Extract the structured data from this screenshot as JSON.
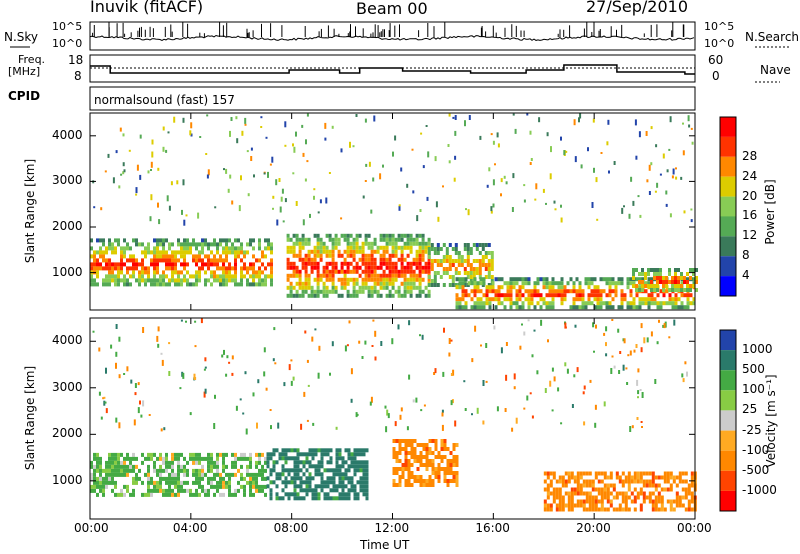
{
  "header": {
    "station": "Inuvik (fitACF)",
    "beam": "Beam 00",
    "date": "27/Sep/2010"
  },
  "strip_panels": {
    "nsky_label": "N.Sky",
    "nsky_ticks": [
      "10^5",
      "10^0"
    ],
    "nsearch_label": "N.Search",
    "nsearch_ticks": [
      "10^5",
      "10^0"
    ],
    "freq_label_1": "Freq.",
    "freq_label_2": "[MHz]",
    "freq_ticks": [
      "18",
      "8"
    ],
    "nave_label": "Nave",
    "nave_ticks": [
      "60",
      "0"
    ],
    "cpid_label": "CPID",
    "cpid_text": "normalsound (fast) 157"
  },
  "colors": {
    "power_scale": [
      "#0000ff",
      "#2244aa",
      "#3a7a5a",
      "#55aa55",
      "#88cc55",
      "#ddcc00",
      "#ff8800",
      "#ff3300",
      "#ff0000"
    ],
    "velocity_scale": [
      "#ff0000",
      "#ff4400",
      "#ff8800",
      "#ffaa22",
      "#cccccc",
      "#88cc44",
      "#44aa44",
      "#2a7a6a",
      "#2244aa"
    ],
    "ground_scatter": "#bbbbbb"
  },
  "chart_data": [
    {
      "type": "heatmap",
      "panel": "power",
      "ylabel": "Slant Range [km]",
      "yticks": [
        "1000",
        "2000",
        "3000",
        "4000"
      ],
      "ylim_km": [
        180,
        4500
      ],
      "xlim_hours_ut": [
        0,
        24
      ],
      "colorbar": {
        "label": "Power [dB]",
        "ticks": [
          "4",
          "8",
          "12",
          "16",
          "20",
          "24",
          "28"
        ],
        "range": [
          0,
          32
        ]
      },
      "scatter_regions": [
        {
          "t_start": 0.0,
          "t_end": 7.2,
          "r_low": 700,
          "r_high": 1750,
          "peak_db": 28
        },
        {
          "t_start": 7.8,
          "t_end": 13.4,
          "r_low": 500,
          "r_high": 1850,
          "peak_db": 30
        },
        {
          "t_start": 13.4,
          "t_end": 16.0,
          "r_low": 700,
          "r_high": 1650,
          "peak_db": 24
        },
        {
          "t_start": 14.5,
          "t_end": 24.0,
          "r_low": 250,
          "r_high": 900,
          "peak_db": 28
        },
        {
          "t_start": 21.5,
          "t_end": 24.0,
          "r_low": 600,
          "r_high": 1100,
          "peak_db": 28
        }
      ]
    },
    {
      "type": "heatmap",
      "panel": "velocity",
      "ylabel": "Slant Range [km]",
      "xlabel": "Time UT",
      "yticks": [
        "1000",
        "2000",
        "3000",
        "4000"
      ],
      "xticks": [
        "00:00",
        "04:00",
        "08:00",
        "12:00",
        "16:00",
        "20:00",
        "00:00"
      ],
      "ylim_km": [
        180,
        4500
      ],
      "xlim_hours_ut": [
        0,
        24
      ],
      "colorbar": {
        "label": "Velocity [m s⁻¹]",
        "ticks": [
          "1000",
          "500",
          "100",
          "25",
          "-25",
          "-100",
          "-500",
          "-1000"
        ]
      },
      "scatter_regions": [
        {
          "t_start": 0.0,
          "t_end": 7.0,
          "r_low": 700,
          "r_high": 1600,
          "velocity": 200
        },
        {
          "t_start": 7.0,
          "t_end": 11.0,
          "r_low": 600,
          "r_high": 1700,
          "velocity": 700
        },
        {
          "t_start": 12.0,
          "t_end": 14.5,
          "r_low": 900,
          "r_high": 1900,
          "velocity": -300
        },
        {
          "t_start": 18.0,
          "t_end": 24.0,
          "r_low": 400,
          "r_high": 1200,
          "velocity": -300
        }
      ]
    }
  ]
}
